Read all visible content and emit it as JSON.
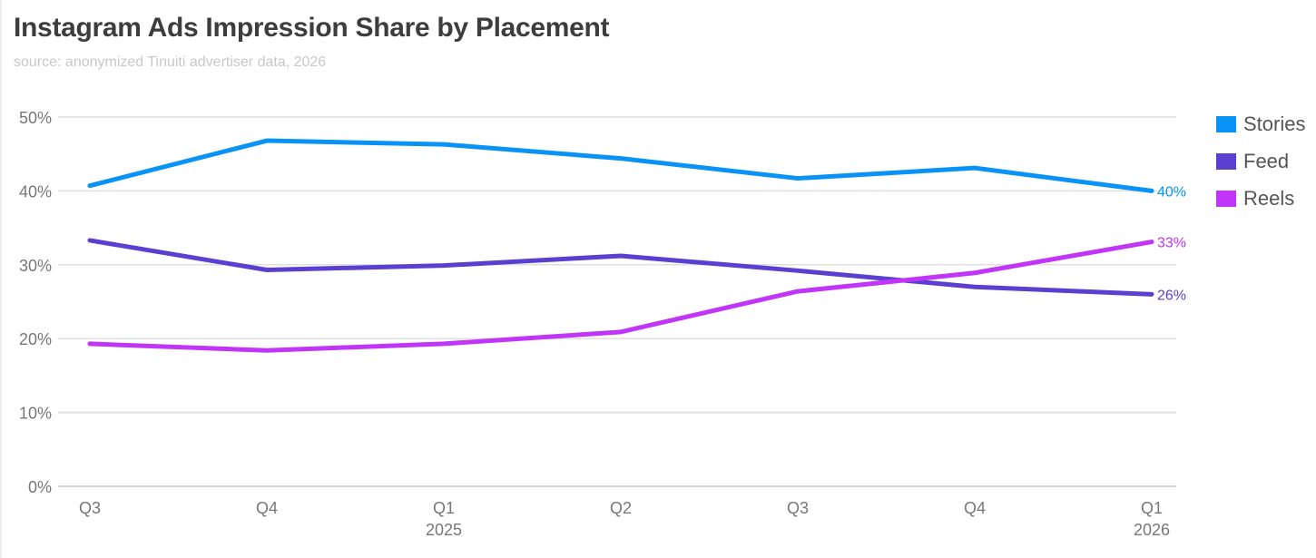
{
  "chart_data": {
    "type": "line",
    "title": "Instagram Ads Impression Share by Placement",
    "subtitle": "source: anonymized Tinuiti advertiser data, 2026",
    "xlabel": "",
    "ylabel": "",
    "categories": [
      "Q3",
      "Q4",
      "Q1",
      "Q2",
      "Q3",
      "Q4",
      "Q1"
    ],
    "category_years": [
      "",
      "",
      "2025",
      "",
      "",
      "",
      "2026"
    ],
    "ylim": [
      0,
      50
    ],
    "yticks": [
      0,
      10,
      20,
      30,
      40,
      50
    ],
    "ytick_labels": [
      "0%",
      "10%",
      "20%",
      "30%",
      "40%",
      "50%"
    ],
    "grid": true,
    "legend_position": "right",
    "series": [
      {
        "name": "Stories",
        "color": "#0a93f7",
        "values": [
          40.7,
          46.8,
          46.3,
          44.4,
          41.7,
          43.1,
          40.0
        ],
        "end_label": "40%"
      },
      {
        "name": "Feed",
        "color": "#5b3fd1",
        "values": [
          33.3,
          29.3,
          29.9,
          31.2,
          29.2,
          27.0,
          26.0
        ],
        "end_label": "26%"
      },
      {
        "name": "Reels",
        "color": "#c035f8",
        "values": [
          19.3,
          18.4,
          19.3,
          20.9,
          26.4,
          28.9,
          33.1
        ],
        "end_label": "33%"
      }
    ]
  }
}
